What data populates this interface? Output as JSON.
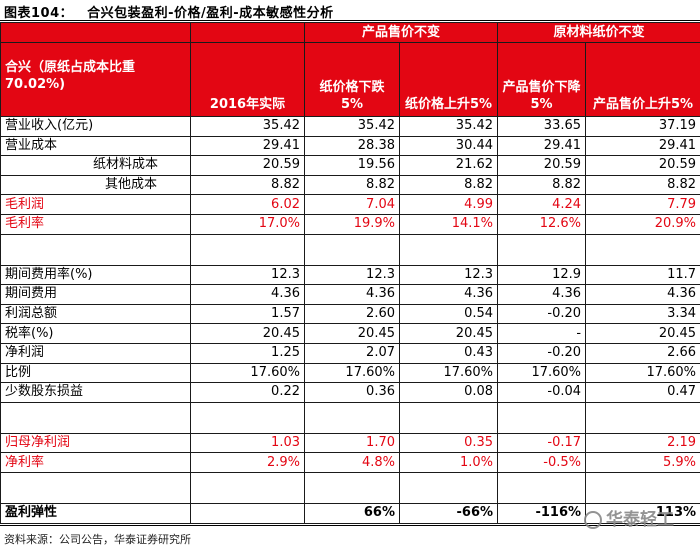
{
  "figure": {
    "label": "图表104：",
    "title": "合兴包装盈利-价格/盈利-成本敏感性分析"
  },
  "header": {
    "group1": "产品售价不变",
    "group2": "原材料纸价不变",
    "col0": "合兴（原纸占成本比重70.02%)",
    "col1": "2016年实际",
    "col2": "纸价格下跌5%",
    "col3": "纸价格上升5%",
    "col4": "产品售价下降5%",
    "col5": "产品售价上升5%"
  },
  "rows": [
    {
      "label": "营业收入(亿元)",
      "values": [
        "35.42",
        "35.42",
        "35.42",
        "33.65",
        "37.19"
      ]
    },
    {
      "label": "营业成本",
      "values": [
        "29.41",
        "28.38",
        "30.44",
        "29.41",
        "29.41"
      ]
    },
    {
      "label": "纸材料成本",
      "values": [
        "20.59",
        "19.56",
        "21.62",
        "20.59",
        "20.59"
      ]
    },
    {
      "label": "其他成本",
      "values": [
        "8.82",
        "8.82",
        "8.82",
        "8.82",
        "8.82"
      ]
    },
    {
      "label": "毛利润",
      "values": [
        "6.02",
        "7.04",
        "4.99",
        "4.24",
        "7.79"
      ]
    },
    {
      "label": "毛利率",
      "values": [
        "17.0%",
        "19.9%",
        "14.1%",
        "12.6%",
        "20.9%"
      ]
    },
    {
      "label": "期间费用率(%)",
      "values": [
        "12.3",
        "12.3",
        "12.3",
        "12.9",
        "11.7"
      ]
    },
    {
      "label": "期间费用",
      "values": [
        "4.36",
        "4.36",
        "4.36",
        "4.36",
        "4.36"
      ]
    },
    {
      "label": "利润总额",
      "values": [
        "1.57",
        "2.60",
        "0.54",
        "-0.20",
        "3.34"
      ]
    },
    {
      "label": "税率(%)",
      "values": [
        "20.45",
        "20.45",
        "20.45",
        "-",
        "20.45"
      ]
    },
    {
      "label": "净利润",
      "values": [
        "1.25",
        "2.07",
        "0.43",
        "-0.20",
        "2.66"
      ]
    },
    {
      "label": "比例",
      "values": [
        "17.60%",
        "17.60%",
        "17.60%",
        "17.60%",
        "17.60%"
      ]
    },
    {
      "label": "少数股东损益",
      "values": [
        "0.22",
        "0.36",
        "0.08",
        "-0.04",
        "0.47"
      ]
    },
    {
      "label": "归母净利润",
      "values": [
        "1.03",
        "1.70",
        "0.35",
        "-0.17",
        "2.19"
      ]
    },
    {
      "label": "净利率",
      "values": [
        "2.9%",
        "4.8%",
        "1.0%",
        "-0.5%",
        "5.9%"
      ]
    },
    {
      "label": "盈利弹性",
      "values": [
        "",
        "66%",
        "-66%",
        "-116%",
        "113%"
      ]
    }
  ],
  "source": "资料来源：公司公告，华泰证券研究所",
  "watermark": "华泰轻工",
  "colors": {
    "accent": "#e30613"
  }
}
